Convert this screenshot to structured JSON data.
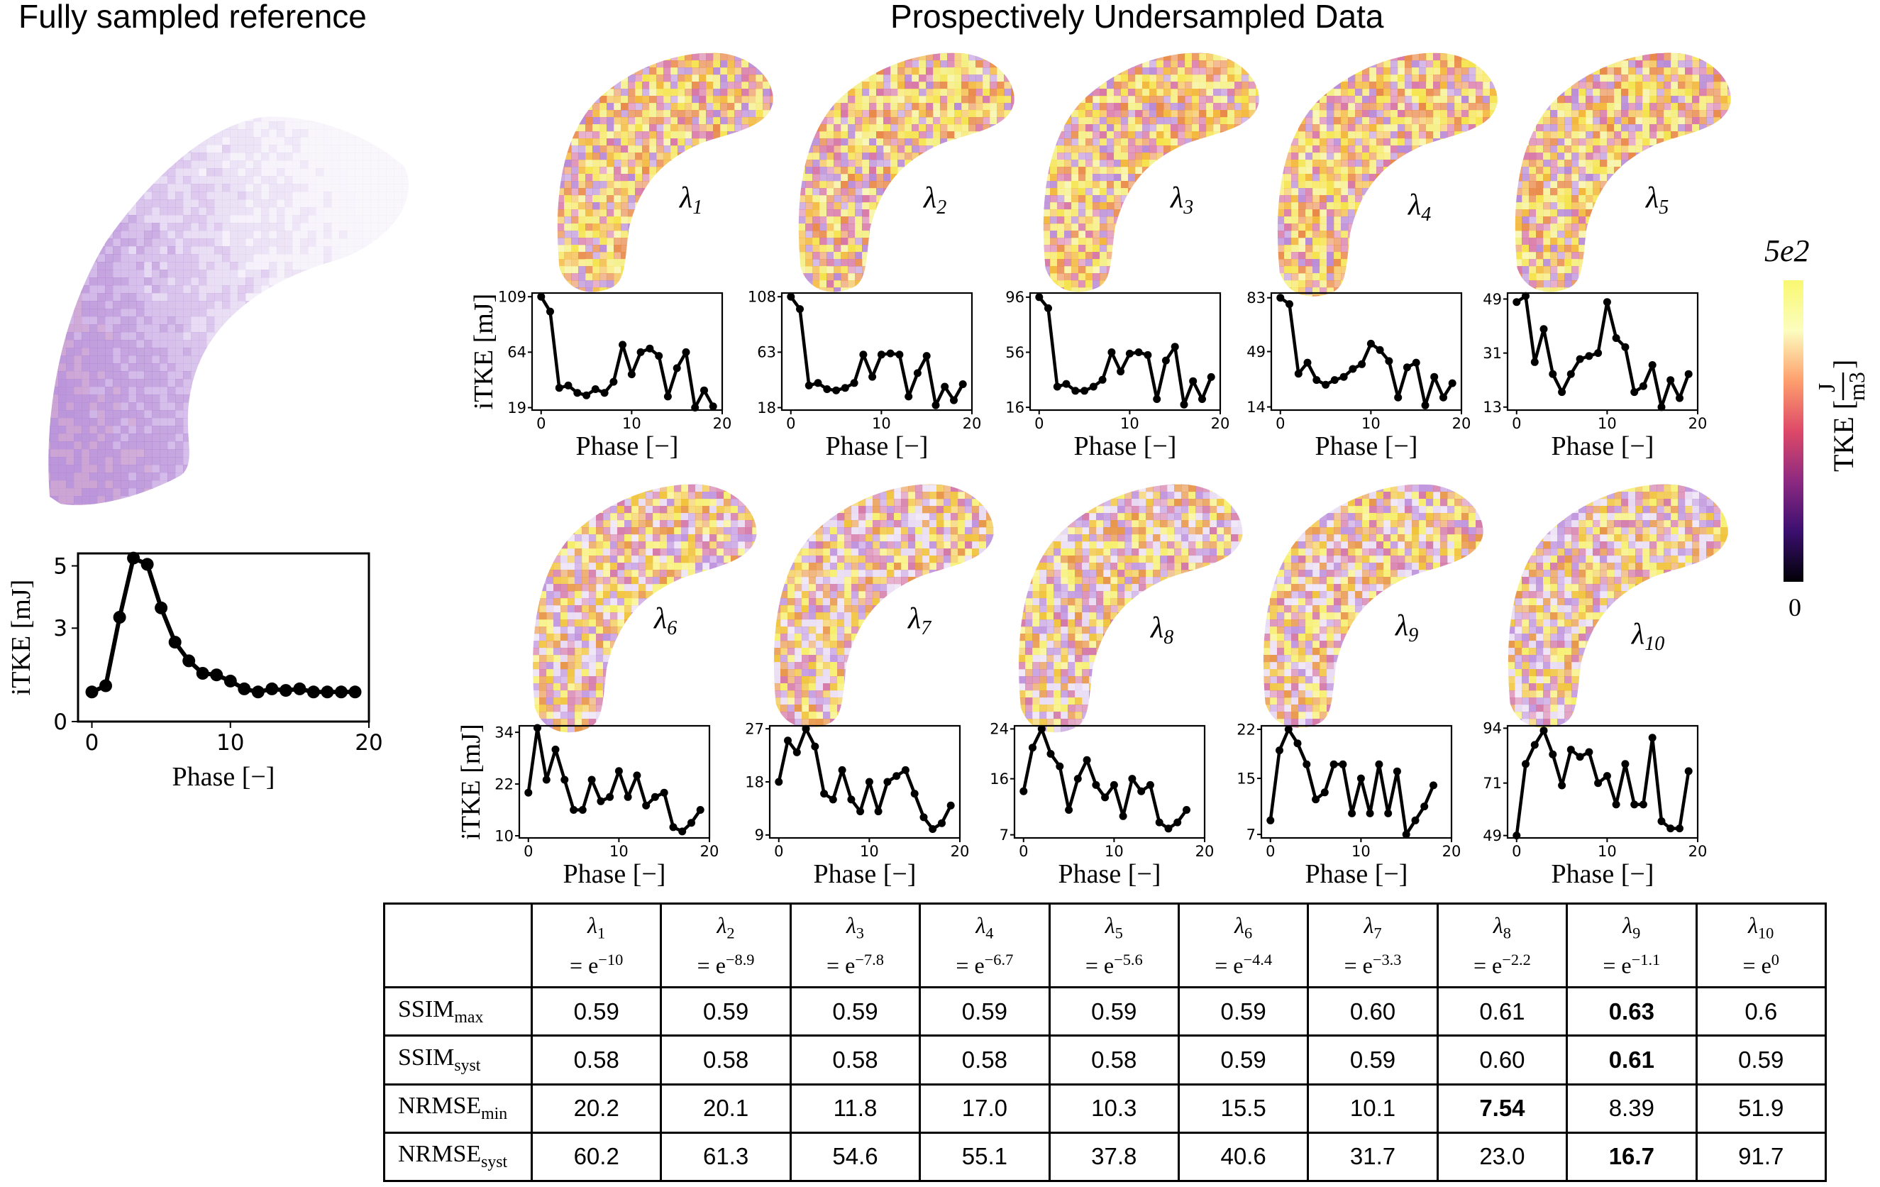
{
  "titles": {
    "left": "Fully sampled reference",
    "right": "Prospectively Undersampled Data"
  },
  "colorbar": {
    "max_label": "5e2",
    "min_label": "0",
    "unit_label": "TKE [J/m3]",
    "unit_text": "TKE [",
    "unit_num": "J",
    "unit_den": "m3",
    "unit_close": "]",
    "colors": [
      "#000004",
      "#3b0f70",
      "#8c2981",
      "#de4968",
      "#fe9f6d",
      "#fcfdbf",
      "#f9f871"
    ]
  },
  "heatmap_colors": {
    "reference": [
      "#eee6f6",
      "#dccbee",
      "#c8a9e3",
      "#b58bd6",
      "#c79bd0"
    ],
    "set1": [
      "#f5e34b",
      "#f3b83c",
      "#e98a4a",
      "#d877a6",
      "#b98ad6",
      "#f4ef82"
    ],
    "set2": [
      "#f1c43d",
      "#e8974a",
      "#d47aa9",
      "#c095de",
      "#e7d9f2",
      "#f6ee6a"
    ]
  },
  "chart_data": [
    {
      "id": "reference",
      "type": "line",
      "title": "",
      "xlabel": "Phase [−]",
      "ylabel": "iTKE [mJ]",
      "x": [
        0,
        1,
        2,
        3,
        4,
        5,
        6,
        7,
        8,
        9,
        10,
        11,
        12,
        13,
        14,
        15,
        16,
        17,
        18,
        19
      ],
      "values": [
        0.95,
        1.15,
        3.35,
        5.25,
        5.05,
        3.65,
        2.55,
        1.95,
        1.55,
        1.5,
        1.3,
        1.05,
        0.95,
        1.05,
        1.0,
        1.05,
        0.95,
        0.95,
        0.95,
        0.95
      ],
      "xlim": [
        -1,
        20
      ],
      "ylim": [
        0,
        5.4
      ],
      "xticks": [
        0,
        10,
        20
      ],
      "yticks": [
        0,
        3,
        5
      ],
      "xtick_labels": [
        "0",
        "10",
        "20"
      ],
      "ytick_labels": [
        "0",
        "3",
        "5"
      ],
      "label": ""
    },
    {
      "id": "lambda1",
      "type": "line",
      "title": "",
      "label": "λ1",
      "xlabel": "Phase [−]",
      "ylabel": "iTKE [mJ]",
      "x": [
        0,
        1,
        2,
        3,
        4,
        5,
        6,
        7,
        8,
        9,
        10,
        11,
        12,
        13,
        14,
        15,
        16,
        17,
        18,
        19
      ],
      "values": [
        109,
        97,
        35,
        37,
        31,
        29,
        34,
        31,
        40,
        70,
        46,
        64,
        67,
        61,
        28,
        51,
        64,
        19,
        33,
        20
      ],
      "xlim": [
        -1,
        20
      ],
      "ylim": [
        17,
        112
      ],
      "xticks": [
        0,
        10,
        20
      ],
      "yticks": [
        19,
        64,
        109
      ],
      "xtick_labels": [
        "0",
        "10",
        "20"
      ],
      "ytick_labels": [
        "19",
        "64",
        "109"
      ]
    },
    {
      "id": "lambda2",
      "type": "line",
      "title": "",
      "label": "λ2",
      "xlabel": "Phase [−]",
      "ylabel": "iTKE [mJ]",
      "x": [
        0,
        1,
        2,
        3,
        4,
        5,
        6,
        7,
        8,
        9,
        10,
        11,
        12,
        13,
        14,
        15,
        16,
        17,
        18,
        19
      ],
      "values": [
        108,
        98,
        36,
        38,
        33,
        32,
        34,
        38,
        61,
        43,
        61,
        62,
        61,
        27,
        46,
        60,
        20,
        35,
        24,
        37
      ],
      "xlim": [
        -1,
        20
      ],
      "ylim": [
        16,
        111
      ],
      "xticks": [
        0,
        10,
        20
      ],
      "yticks": [
        18,
        63,
        108
      ],
      "xtick_labels": [
        "0",
        "10",
        "20"
      ],
      "ytick_labels": [
        "18",
        "63",
        "108"
      ]
    },
    {
      "id": "lambda3",
      "type": "line",
      "title": "",
      "label": "λ3",
      "xlabel": "Phase [−]",
      "ylabel": "iTKE [mJ]",
      "x": [
        0,
        1,
        2,
        3,
        4,
        5,
        6,
        7,
        8,
        9,
        10,
        11,
        12,
        13,
        14,
        15,
        16,
        17,
        18,
        19
      ],
      "values": [
        96,
        88,
        31,
        33,
        28,
        28,
        31,
        36,
        56,
        42,
        55,
        56,
        54,
        22,
        50,
        60,
        18,
        35,
        22,
        38
      ],
      "xlim": [
        -1,
        20
      ],
      "ylim": [
        14,
        99
      ],
      "xticks": [
        0,
        10,
        20
      ],
      "yticks": [
        16,
        56,
        96
      ],
      "xtick_labels": [
        "0",
        "10",
        "20"
      ],
      "ytick_labels": [
        "16",
        "56",
        "96"
      ]
    },
    {
      "id": "lambda4",
      "type": "line",
      "title": "",
      "label": "λ4",
      "xlabel": "Phase [−]",
      "ylabel": "iTKE [mJ]",
      "x": [
        0,
        1,
        2,
        3,
        4,
        5,
        6,
        7,
        8,
        9,
        10,
        11,
        12,
        13,
        14,
        15,
        16,
        17,
        18,
        19
      ],
      "values": [
        83,
        79,
        35,
        42,
        31,
        28,
        31,
        33,
        38,
        41,
        54,
        50,
        43,
        20,
        39,
        42,
        15,
        33,
        20,
        29
      ],
      "xlim": [
        -1,
        20
      ],
      "ylim": [
        12,
        86
      ],
      "xticks": [
        0,
        10,
        20
      ],
      "yticks": [
        14,
        49,
        83
      ],
      "xtick_labels": [
        "0",
        "10",
        "20"
      ],
      "ytick_labels": [
        "14",
        "49",
        "83"
      ]
    },
    {
      "id": "lambda5",
      "type": "line",
      "title": "",
      "label": "λ5",
      "xlabel": "Phase [−]",
      "ylabel": "iTKE [mJ]",
      "x": [
        0,
        1,
        2,
        3,
        4,
        5,
        6,
        7,
        8,
        9,
        10,
        11,
        12,
        13,
        14,
        15,
        16,
        17,
        18,
        19
      ],
      "values": [
        48,
        50,
        28,
        39,
        24,
        18,
        24,
        29,
        30,
        31,
        48,
        36,
        33,
        18,
        20,
        27,
        13,
        22,
        16,
        24
      ],
      "xlim": [
        -1,
        20
      ],
      "ylim": [
        12,
        51
      ],
      "xticks": [
        0,
        10,
        20
      ],
      "yticks": [
        13,
        31,
        49
      ],
      "xtick_labels": [
        "0",
        "10",
        "20"
      ],
      "ytick_labels": [
        "13",
        "31",
        "49"
      ]
    },
    {
      "id": "lambda6",
      "type": "line",
      "title": "",
      "label": "λ6",
      "xlabel": "Phase [−]",
      "ylabel": "iTKE [mJ]",
      "x": [
        0,
        1,
        2,
        3,
        4,
        5,
        6,
        7,
        8,
        9,
        10,
        11,
        12,
        13,
        14,
        15,
        16,
        17,
        18,
        19
      ],
      "values": [
        20,
        35,
        23,
        30,
        23,
        16,
        16,
        23,
        18,
        19,
        25,
        19,
        24,
        17,
        19,
        20,
        12,
        11,
        13,
        16
      ],
      "xlim": [
        -1,
        20
      ],
      "ylim": [
        9.5,
        35.5
      ],
      "xticks": [
        0,
        10,
        20
      ],
      "yticks": [
        10,
        22,
        34
      ],
      "xtick_labels": [
        "0",
        "10",
        "20"
      ],
      "ytick_labels": [
        "10",
        "22",
        "34"
      ]
    },
    {
      "id": "lambda7",
      "type": "line",
      "title": "",
      "label": "λ7",
      "xlabel": "Phase [−]",
      "ylabel": "iTKE [mJ]",
      "x": [
        0,
        1,
        2,
        3,
        4,
        5,
        6,
        7,
        8,
        9,
        10,
        11,
        12,
        13,
        14,
        15,
        16,
        17,
        18,
        19
      ],
      "values": [
        18,
        25,
        23,
        27,
        24,
        16,
        15,
        20,
        15,
        13,
        18,
        13,
        18,
        19,
        20,
        16,
        12,
        10,
        11,
        14
      ],
      "xlim": [
        -1,
        20
      ],
      "ylim": [
        8.5,
        27.5
      ],
      "xticks": [
        0,
        10,
        20
      ],
      "yticks": [
        9,
        18,
        27
      ],
      "xtick_labels": [
        "0",
        "10",
        "20"
      ],
      "ytick_labels": [
        "9",
        "18",
        "27"
      ]
    },
    {
      "id": "lambda8",
      "type": "line",
      "title": "",
      "label": "λ8",
      "xlabel": "Phase [−]",
      "ylabel": "iTKE [mJ]",
      "x": [
        0,
        1,
        2,
        3,
        4,
        5,
        6,
        7,
        8,
        9,
        10,
        11,
        12,
        13,
        14,
        15,
        16,
        17,
        18,
        19
      ],
      "values": [
        14,
        21,
        24,
        20,
        18,
        11,
        16,
        19,
        15,
        13,
        15,
        10,
        16,
        14,
        15,
        9,
        8,
        9,
        11,
        null
      ],
      "xlim": [
        -1,
        20
      ],
      "ylim": [
        6.5,
        24.5
      ],
      "xticks": [
        0,
        10,
        20
      ],
      "yticks": [
        7,
        16,
        24
      ],
      "xtick_labels": [
        "0",
        "10",
        "20"
      ],
      "ytick_labels": [
        "7",
        "16",
        "24"
      ]
    },
    {
      "id": "lambda9",
      "type": "line",
      "title": "",
      "label": "λ9",
      "xlabel": "Phase [−]",
      "ylabel": "iTKE [mJ]",
      "x": [
        0,
        1,
        2,
        3,
        4,
        5,
        6,
        7,
        8,
        9,
        10,
        11,
        12,
        13,
        14,
        15,
        16,
        17,
        18,
        19
      ],
      "values": [
        9,
        19,
        22,
        20,
        17,
        12,
        13,
        17,
        17,
        10,
        15,
        10,
        17,
        10,
        16,
        7,
        9,
        11,
        14,
        null
      ],
      "xlim": [
        -1,
        20
      ],
      "ylim": [
        6.5,
        22.5
      ],
      "xticks": [
        0,
        10,
        20
      ],
      "yticks": [
        7,
        15,
        22
      ],
      "xtick_labels": [
        "0",
        "10",
        "20"
      ],
      "ytick_labels": [
        "7",
        "15",
        "22"
      ]
    },
    {
      "id": "lambda10",
      "type": "line",
      "title": "",
      "label": "λ10",
      "xlabel": "Phase [−]",
      "ylabel": "iTKE [mJ]",
      "x": [
        0,
        1,
        2,
        3,
        4,
        5,
        6,
        7,
        8,
        9,
        10,
        11,
        12,
        13,
        14,
        15,
        16,
        17,
        18,
        19
      ],
      "values": [
        49,
        79,
        87,
        93,
        83,
        70,
        85,
        82,
        84,
        71,
        74,
        62,
        79,
        62,
        62,
        90,
        55,
        52,
        52,
        76
      ],
      "xlim": [
        -1,
        20
      ],
      "ylim": [
        48,
        95
      ],
      "xticks": [
        0,
        10,
        20
      ],
      "yticks": [
        49,
        71,
        94
      ],
      "xtick_labels": [
        "0",
        "10",
        "20"
      ],
      "ytick_labels": [
        "49",
        "71",
        "94"
      ]
    },
    {
      "id": "metrics_table",
      "type": "table",
      "title": "",
      "columns": [
        {
          "sym": "λ",
          "sub": "1",
          "eq": "= e",
          "exp": "−10"
        },
        {
          "sym": "λ",
          "sub": "2",
          "eq": "= e",
          "exp": "−8.9"
        },
        {
          "sym": "λ",
          "sub": "3",
          "eq": "= e",
          "exp": "−7.8"
        },
        {
          "sym": "λ",
          "sub": "4",
          "eq": "= e",
          "exp": "−6.7"
        },
        {
          "sym": "λ",
          "sub": "5",
          "eq": "= e",
          "exp": "−5.6"
        },
        {
          "sym": "λ",
          "sub": "6",
          "eq": "= e",
          "exp": "−4.4"
        },
        {
          "sym": "λ",
          "sub": "7",
          "eq": "= e",
          "exp": "−3.3"
        },
        {
          "sym": "λ",
          "sub": "8",
          "eq": "= e",
          "exp": "−2.2"
        },
        {
          "sym": "λ",
          "sub": "9",
          "eq": "= e",
          "exp": "−1.1"
        },
        {
          "sym": "λ",
          "sub": "10",
          "eq": "= e",
          "exp": "0"
        }
      ],
      "rows": [
        {
          "base": "SSIM",
          "sub": "max",
          "values": [
            "0.59",
            "0.59",
            "0.59",
            "0.59",
            "0.59",
            "0.59",
            "0.60",
            "0.61",
            "0.63",
            "0.6"
          ],
          "bold_index": 8
        },
        {
          "base": "SSIM",
          "sub": "syst",
          "values": [
            "0.58",
            "0.58",
            "0.58",
            "0.58",
            "0.58",
            "0.59",
            "0.59",
            "0.60",
            "0.61",
            "0.59"
          ],
          "bold_index": 8
        },
        {
          "base": "NRMSE",
          "sub": "min",
          "values": [
            "20.2",
            "20.1",
            "11.8",
            "17.0",
            "10.3",
            "15.5",
            "10.1",
            "7.54",
            "8.39",
            "51.9"
          ],
          "bold_index": 7
        },
        {
          "base": "NRMSE",
          "sub": "syst",
          "values": [
            "60.2",
            "61.3",
            "54.6",
            "55.1",
            "37.8",
            "40.6",
            "31.7",
            "23.0",
            "16.7",
            "91.7"
          ],
          "bold_index": 8
        }
      ]
    }
  ]
}
